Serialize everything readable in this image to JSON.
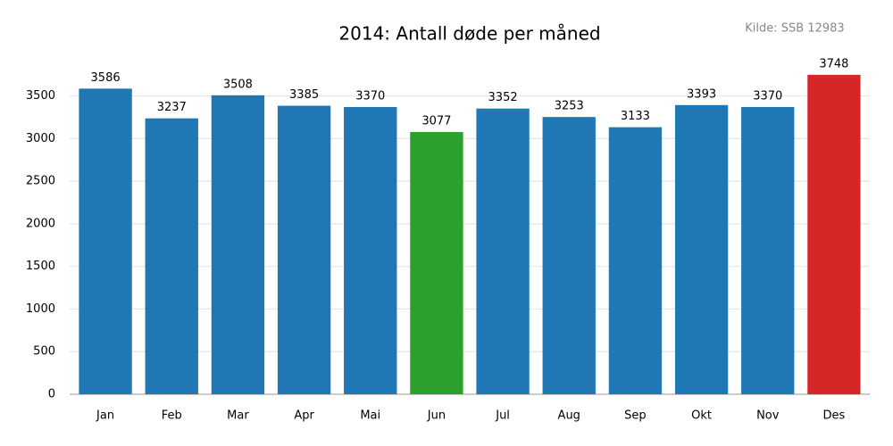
{
  "chart_data": {
    "type": "bar",
    "title": "2014: Antall døde per måned",
    "annotation": "Kilde: SSB 12983",
    "categories": [
      "Jan",
      "Feb",
      "Mar",
      "Apr",
      "Mai",
      "Jun",
      "Jul",
      "Aug",
      "Sep",
      "Okt",
      "Nov",
      "Des"
    ],
    "values": [
      3586,
      3237,
      3508,
      3385,
      3370,
      3077,
      3352,
      3253,
      3133,
      3393,
      3370,
      3748
    ],
    "colors": [
      "#1f77b4",
      "#1f77b4",
      "#1f77b4",
      "#1f77b4",
      "#1f77b4",
      "#2ca02c",
      "#1f77b4",
      "#1f77b4",
      "#1f77b4",
      "#1f77b4",
      "#1f77b4",
      "#d62728"
    ],
    "ylim": [
      0,
      3935
    ],
    "yticks": [
      0,
      500,
      1000,
      1500,
      2000,
      2500,
      3000,
      3500
    ],
    "grid": true
  }
}
